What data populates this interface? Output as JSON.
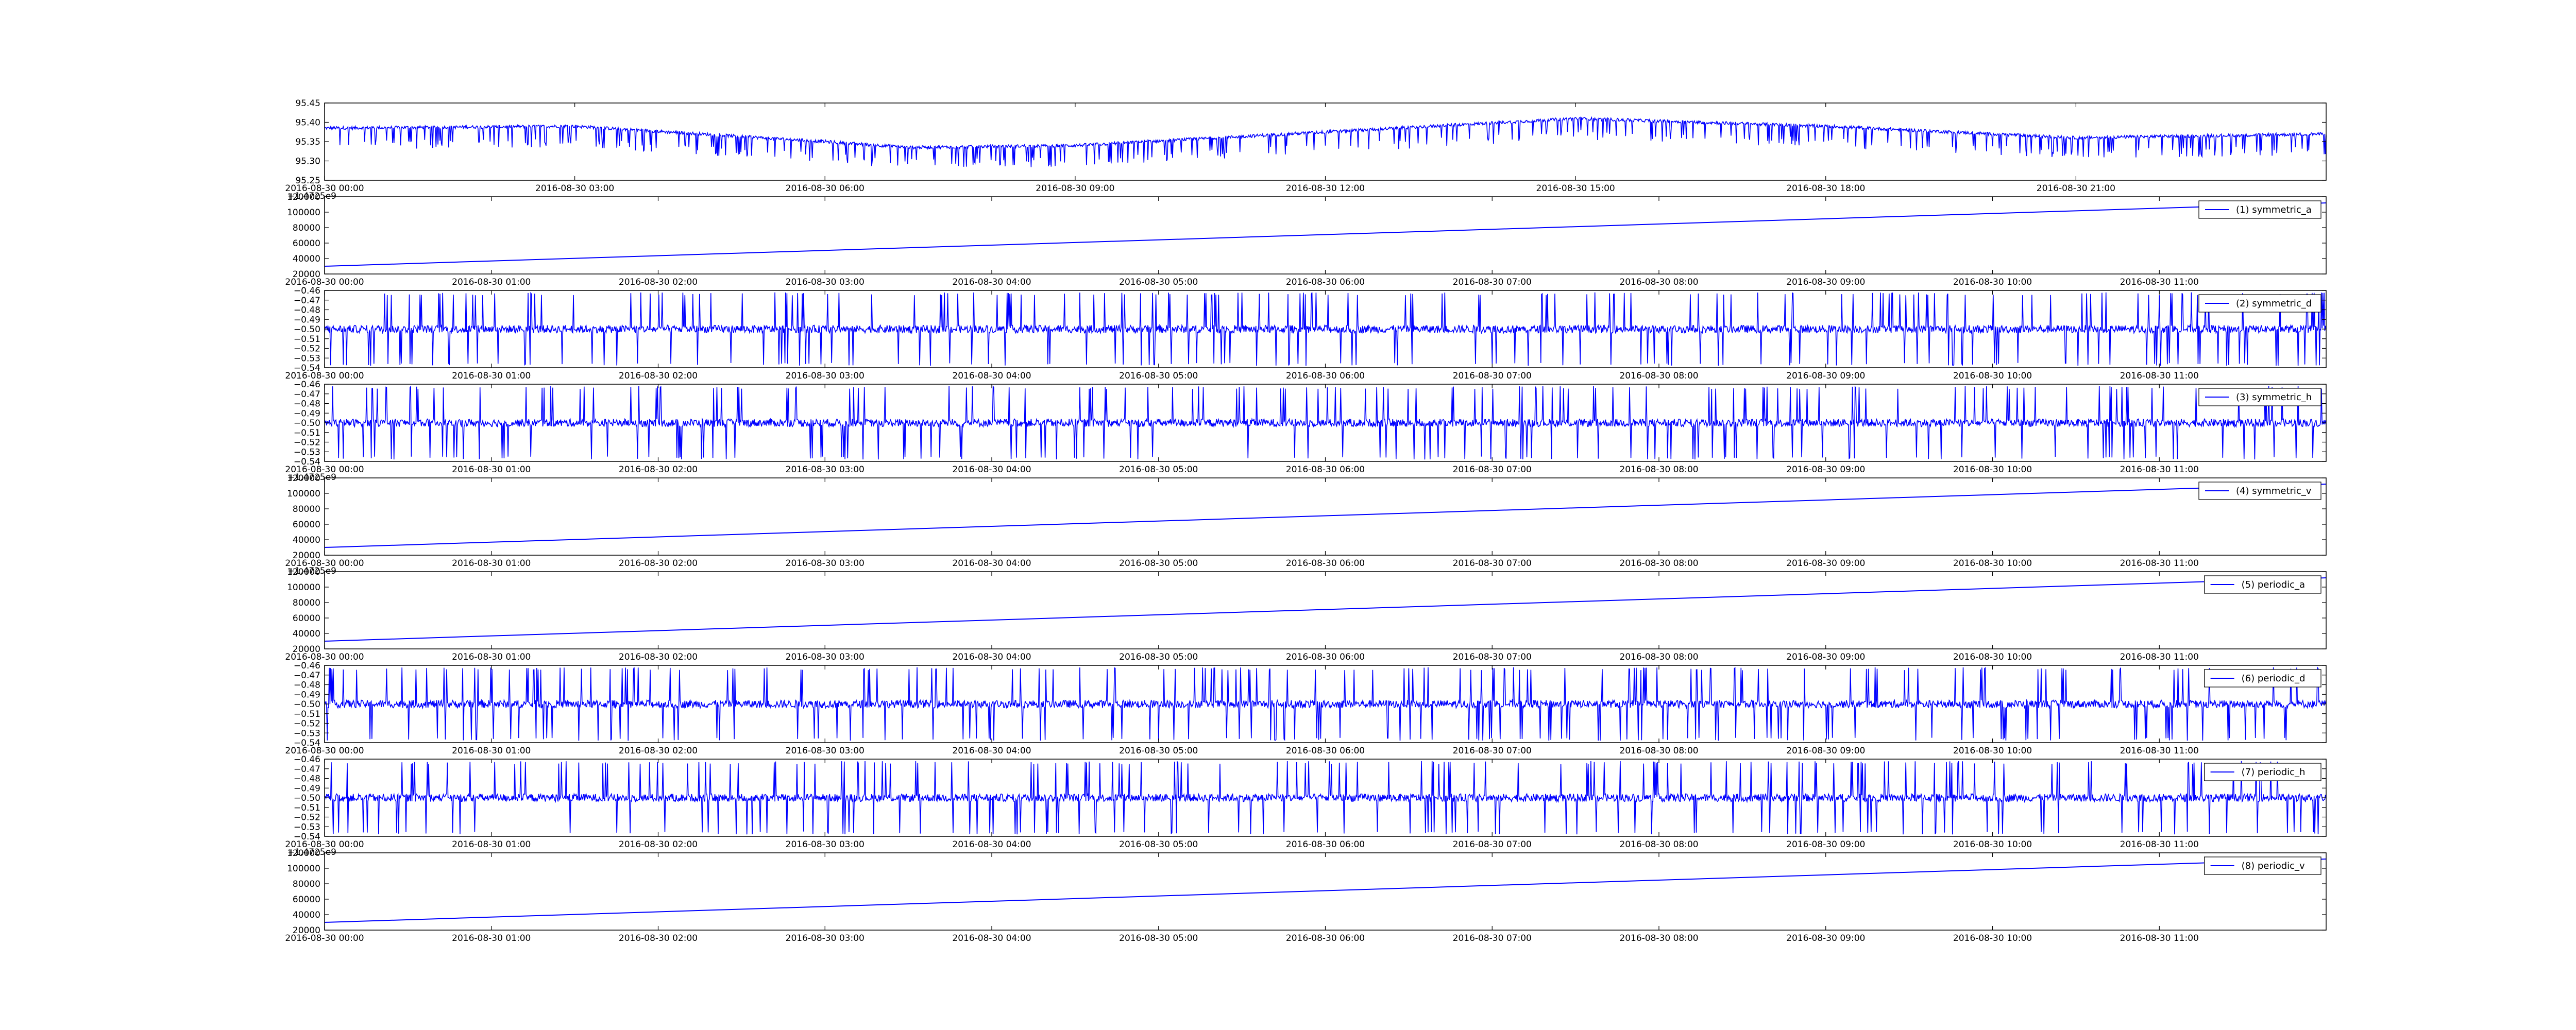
{
  "colors": {
    "line": "#0000ff",
    "axis": "#000000",
    "background": "#ffffff"
  },
  "chart_data": [
    {
      "type": "line",
      "title": "",
      "xlabel": "",
      "ylabel": "",
      "grid": false,
      "legend": "",
      "x_ticks": [
        "2016-08-30 00:00",
        "2016-08-30 03:00",
        "2016-08-30 06:00",
        "2016-08-30 09:00",
        "2016-08-30 12:00",
        "2016-08-30 15:00",
        "2016-08-30 18:00",
        "2016-08-30 21:00"
      ],
      "xlim": [
        "2016-08-30 00:00",
        "2016-08-31 00:00"
      ],
      "y_ticks": [
        "95.25",
        "95.30",
        "95.35",
        "95.40",
        "95.45"
      ],
      "ylim": [
        95.25,
        95.45
      ],
      "series": [
        {
          "style": "dense-noisy",
          "baseline_points": [
            [
              "2016-08-30 00:00",
              95.385
            ],
            [
              "2016-08-30 03:00",
              95.39
            ],
            [
              "2016-08-30 06:00",
              95.35
            ],
            [
              "2016-08-30 07:00",
              95.335
            ],
            [
              "2016-08-30 09:00",
              95.34
            ],
            [
              "2016-08-30 12:00",
              95.375
            ],
            [
              "2016-08-30 15:00",
              95.41
            ],
            [
              "2016-08-30 18:00",
              95.39
            ],
            [
              "2016-08-30 21:00",
              95.36
            ],
            [
              "2016-08-31 00:00",
              95.37
            ]
          ],
          "spike_min": 95.29
        }
      ]
    },
    {
      "type": "line",
      "offset_text": "+1.4725e9",
      "x_ticks": [
        "2016-08-30 00:00",
        "2016-08-30 01:00",
        "2016-08-30 02:00",
        "2016-08-30 03:00",
        "2016-08-30 04:00",
        "2016-08-30 05:00",
        "2016-08-30 06:00",
        "2016-08-30 07:00",
        "2016-08-30 08:00",
        "2016-08-30 09:00",
        "2016-08-30 10:00",
        "2016-08-30 11:00"
      ],
      "xlim": [
        "2016-08-30 00:00",
        "2016-08-30 12:00"
      ],
      "y_ticks": [
        "20000",
        "40000",
        "60000",
        "80000",
        "100000",
        "120000"
      ],
      "ylim": [
        20000,
        120000
      ],
      "series": [
        {
          "name": "(1) symmetric_a",
          "style": "linear",
          "x": [
            "2016-08-30 00:00",
            "2016-08-30 12:00"
          ],
          "y": [
            30000,
            112000
          ]
        }
      ]
    },
    {
      "type": "line",
      "x_ticks": [
        "2016-08-30 00:00",
        "2016-08-30 01:00",
        "2016-08-30 02:00",
        "2016-08-30 03:00",
        "2016-08-30 04:00",
        "2016-08-30 05:00",
        "2016-08-30 06:00",
        "2016-08-30 07:00",
        "2016-08-30 08:00",
        "2016-08-30 09:00",
        "2016-08-30 10:00",
        "2016-08-30 11:00"
      ],
      "xlim": [
        "2016-08-30 00:00",
        "2016-08-30 12:00"
      ],
      "y_ticks": [
        "−0.54",
        "−0.53",
        "−0.52",
        "−0.51",
        "−0.50",
        "−0.49",
        "−0.48",
        "−0.47",
        "−0.46"
      ],
      "ylim": [
        -0.54,
        -0.46
      ],
      "series": [
        {
          "name": "(2) symmetric_d",
          "style": "oscillating",
          "center": -0.5,
          "noise": 0.004,
          "spike_up": -0.465,
          "spike_down": -0.535
        }
      ]
    },
    {
      "type": "line",
      "x_ticks": [
        "2016-08-30 00:00",
        "2016-08-30 01:00",
        "2016-08-30 02:00",
        "2016-08-30 03:00",
        "2016-08-30 04:00",
        "2016-08-30 05:00",
        "2016-08-30 06:00",
        "2016-08-30 07:00",
        "2016-08-30 08:00",
        "2016-08-30 09:00",
        "2016-08-30 10:00",
        "2016-08-30 11:00"
      ],
      "xlim": [
        "2016-08-30 00:00",
        "2016-08-30 12:00"
      ],
      "y_ticks": [
        "−0.54",
        "−0.53",
        "−0.52",
        "−0.51",
        "−0.50",
        "−0.49",
        "−0.48",
        "−0.47",
        "−0.46"
      ],
      "ylim": [
        -0.54,
        -0.46
      ],
      "series": [
        {
          "name": "(3) symmetric_h",
          "style": "oscillating",
          "center": -0.5,
          "noise": 0.004,
          "spike_up": -0.465,
          "spike_down": -0.535
        }
      ]
    },
    {
      "type": "line",
      "offset_text": "+1.4725e9",
      "x_ticks": [
        "2016-08-30 00:00",
        "2016-08-30 01:00",
        "2016-08-30 02:00",
        "2016-08-30 03:00",
        "2016-08-30 04:00",
        "2016-08-30 05:00",
        "2016-08-30 06:00",
        "2016-08-30 07:00",
        "2016-08-30 08:00",
        "2016-08-30 09:00",
        "2016-08-30 10:00",
        "2016-08-30 11:00"
      ],
      "xlim": [
        "2016-08-30 00:00",
        "2016-08-30 12:00"
      ],
      "y_ticks": [
        "20000",
        "40000",
        "60000",
        "80000",
        "100000",
        "120000"
      ],
      "ylim": [
        20000,
        120000
      ],
      "series": [
        {
          "name": "(4) symmetric_v",
          "style": "linear",
          "x": [
            "2016-08-30 00:00",
            "2016-08-30 12:00"
          ],
          "y": [
            30000,
            112000
          ]
        }
      ]
    },
    {
      "type": "line",
      "offset_text": "+1.4725e9",
      "x_ticks": [
        "2016-08-30 00:00",
        "2016-08-30 01:00",
        "2016-08-30 02:00",
        "2016-08-30 03:00",
        "2016-08-30 04:00",
        "2016-08-30 05:00",
        "2016-08-30 06:00",
        "2016-08-30 07:00",
        "2016-08-30 08:00",
        "2016-08-30 09:00",
        "2016-08-30 10:00",
        "2016-08-30 11:00"
      ],
      "xlim": [
        "2016-08-30 00:00",
        "2016-08-30 12:00"
      ],
      "y_ticks": [
        "20000",
        "40000",
        "60000",
        "80000",
        "100000",
        "120000"
      ],
      "ylim": [
        20000,
        120000
      ],
      "series": [
        {
          "name": "(5) periodic_a",
          "style": "linear",
          "x": [
            "2016-08-30 00:00",
            "2016-08-30 12:00"
          ],
          "y": [
            30000,
            112000
          ]
        }
      ]
    },
    {
      "type": "line",
      "x_ticks": [
        "2016-08-30 00:00",
        "2016-08-30 01:00",
        "2016-08-30 02:00",
        "2016-08-30 03:00",
        "2016-08-30 04:00",
        "2016-08-30 05:00",
        "2016-08-30 06:00",
        "2016-08-30 07:00",
        "2016-08-30 08:00",
        "2016-08-30 09:00",
        "2016-08-30 10:00",
        "2016-08-30 11:00"
      ],
      "xlim": [
        "2016-08-30 00:00",
        "2016-08-30 12:00"
      ],
      "y_ticks": [
        "−0.54",
        "−0.53",
        "−0.52",
        "−0.51",
        "−0.50",
        "−0.49",
        "−0.48",
        "−0.47",
        "−0.46"
      ],
      "ylim": [
        -0.54,
        -0.46
      ],
      "series": [
        {
          "name": "(6) periodic_d",
          "style": "oscillating",
          "center": -0.5,
          "noise": 0.004,
          "spike_up": -0.465,
          "spike_down": -0.535
        }
      ]
    },
    {
      "type": "line",
      "x_ticks": [
        "2016-08-30 00:00",
        "2016-08-30 01:00",
        "2016-08-30 02:00",
        "2016-08-30 03:00",
        "2016-08-30 04:00",
        "2016-08-30 05:00",
        "2016-08-30 06:00",
        "2016-08-30 07:00",
        "2016-08-30 08:00",
        "2016-08-30 09:00",
        "2016-08-30 10:00",
        "2016-08-30 11:00"
      ],
      "xlim": [
        "2016-08-30 00:00",
        "2016-08-30 12:00"
      ],
      "y_ticks": [
        "−0.54",
        "−0.53",
        "−0.52",
        "−0.51",
        "−0.50",
        "−0.49",
        "−0.48",
        "−0.47",
        "−0.46"
      ],
      "ylim": [
        -0.54,
        -0.46
      ],
      "series": [
        {
          "name": "(7) periodic_h",
          "style": "oscillating",
          "center": -0.5,
          "noise": 0.004,
          "spike_up": -0.465,
          "spike_down": -0.535
        }
      ]
    },
    {
      "type": "line",
      "offset_text": "+1.4725e9",
      "x_ticks": [
        "2016-08-30 00:00",
        "2016-08-30 01:00",
        "2016-08-30 02:00",
        "2016-08-30 03:00",
        "2016-08-30 04:00",
        "2016-08-30 05:00",
        "2016-08-30 06:00",
        "2016-08-30 07:00",
        "2016-08-30 08:00",
        "2016-08-30 09:00",
        "2016-08-30 10:00",
        "2016-08-30 11:00"
      ],
      "xlim": [
        "2016-08-30 00:00",
        "2016-08-30 12:00"
      ],
      "y_ticks": [
        "20000",
        "40000",
        "60000",
        "80000",
        "100000",
        "120000"
      ],
      "ylim": [
        20000,
        120000
      ],
      "series": [
        {
          "name": "(8) periodic_v",
          "style": "linear",
          "x": [
            "2016-08-30 00:00",
            "2016-08-30 12:00"
          ],
          "y": [
            30000,
            112000
          ]
        }
      ]
    }
  ]
}
